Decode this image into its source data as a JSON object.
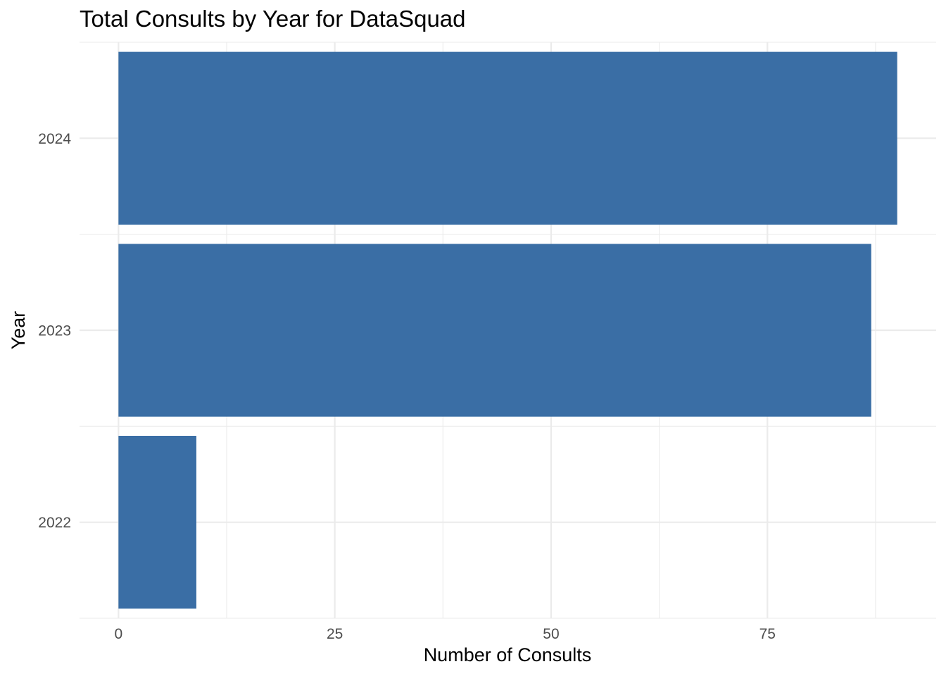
{
  "chart_data": {
    "type": "bar",
    "orientation": "horizontal",
    "title": "Total Consults by Year for DataSquad",
    "xlabel": "Number of Consults",
    "ylabel": "Year",
    "categories": [
      "2022",
      "2023",
      "2024"
    ],
    "values": [
      9,
      87,
      90
    ],
    "xlim": [
      -4.5,
      94.5
    ],
    "x_ticks": [
      0,
      25,
      50,
      75
    ],
    "x_tick_labels": [
      "0",
      "25",
      "50",
      "75"
    ],
    "bar_color": "#3a6ea5",
    "grid": true,
    "legend": "none"
  }
}
